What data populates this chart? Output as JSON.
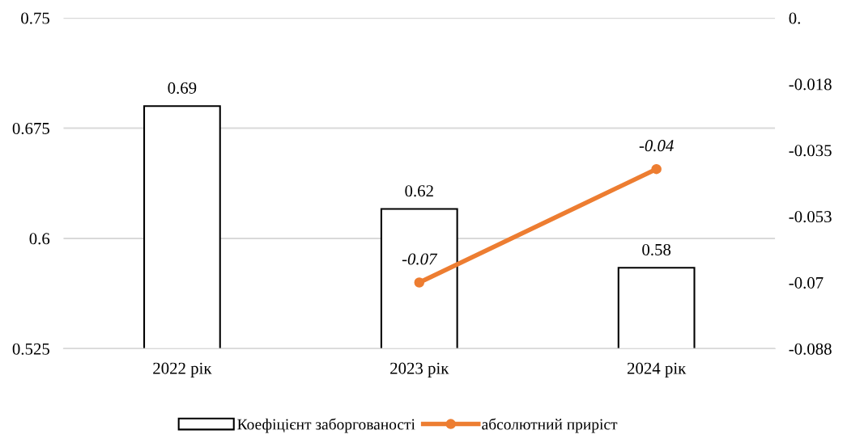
{
  "chart_data": {
    "type": "bar",
    "categories": [
      "2022 рік",
      "2023 рік",
      "2024 рік"
    ],
    "series": [
      {
        "name": "Коефіцієнт заборгованості",
        "color": "#ffffff",
        "values": [
          0.69,
          0.62,
          0.58
        ]
      },
      {
        "name": "абсолютний приріст",
        "type": "line",
        "axis": "y2",
        "color": "#ed7d31",
        "values": [
          null,
          -0.07,
          -0.04
        ]
      }
    ],
    "ylim": [
      0.525,
      0.75
    ],
    "yticks": [
      0.525,
      0.6,
      0.675,
      0.75
    ],
    "y2lim": [
      -0.0875,
      0
    ],
    "y2ticks": [
      {
        "value": -0.0875,
        "label": "-0.088"
      },
      {
        "value": -0.07,
        "label": "-0.07"
      },
      {
        "value": -0.0525,
        "label": "-0.053"
      },
      {
        "value": -0.035,
        "label": "-0.035"
      },
      {
        "value": -0.0175,
        "label": "-0.018"
      },
      {
        "value": 0,
        "label": "0."
      }
    ],
    "grid": "y",
    "legend": "bottom",
    "marker": "circle",
    "data_labels": true
  }
}
